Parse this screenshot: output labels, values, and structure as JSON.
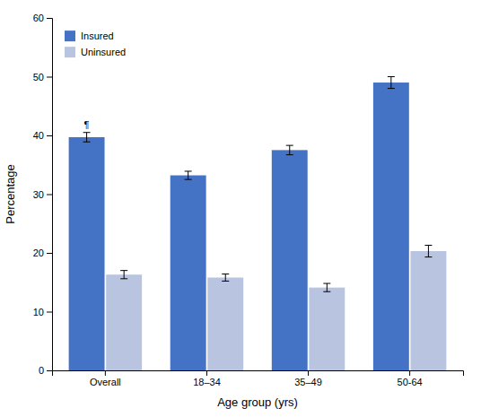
{
  "chart_data": {
    "type": "bar",
    "categories": [
      "Overall",
      "18–34",
      "35–49",
      "50-64"
    ],
    "series": [
      {
        "name": "Insured",
        "color": "#4472C4",
        "values": [
          39.7,
          33.2,
          37.5,
          49.0
        ],
        "errors": [
          0.8,
          0.7,
          0.8,
          1.0
        ]
      },
      {
        "name": "Uninsured",
        "color": "#B8C4E0",
        "values": [
          16.3,
          15.8,
          14.1,
          20.3
        ],
        "errors": [
          0.7,
          0.6,
          0.7,
          1.0
        ]
      }
    ],
    "xlabel": "Age group (yrs)",
    "ylabel": "Percentage",
    "ylim": [
      0,
      60
    ],
    "yticks": [
      0,
      10,
      20,
      30,
      40,
      50,
      60
    ],
    "annotation": "¶",
    "grid": false,
    "legend": "upper left"
  }
}
